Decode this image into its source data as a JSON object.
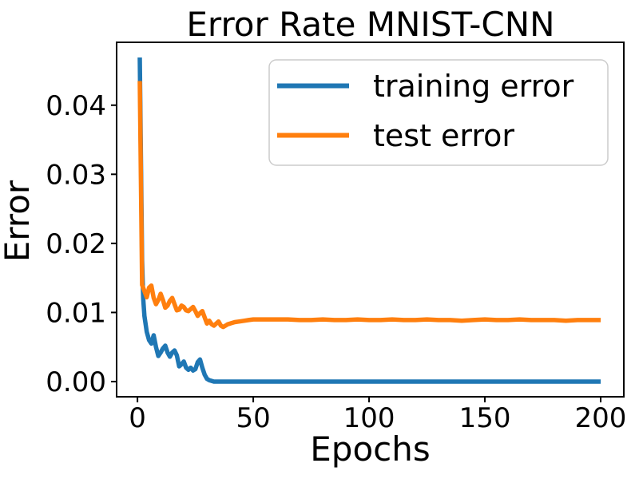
{
  "chart_data": {
    "type": "line",
    "title": "Error Rate MNIST-CNN",
    "xlabel": "Epochs",
    "ylabel": "Error",
    "xlim": [
      -9,
      210
    ],
    "ylim": [
      -0.0022,
      0.0491
    ],
    "xticks": [
      0,
      50,
      100,
      150,
      200
    ],
    "xtick_labels": [
      "0",
      "50",
      "100",
      "150",
      "200"
    ],
    "yticks": [
      0,
      0.01,
      0.02,
      0.03,
      0.04
    ],
    "ytick_labels": [
      "0.00",
      "0.01",
      "0.02",
      "0.03",
      "0.04"
    ],
    "grid": false,
    "legend_position": "upper right",
    "series": [
      {
        "name": "training error",
        "color": "#1f77b4",
        "points": [
          [
            1,
            0.0469
          ],
          [
            2,
            0.0175
          ],
          [
            2.5,
            0.012
          ],
          [
            3,
            0.0095
          ],
          [
            4,
            0.0072
          ],
          [
            5,
            0.006
          ],
          [
            6,
            0.0055
          ],
          [
            7,
            0.0067
          ],
          [
            8,
            0.005
          ],
          [
            9,
            0.0037
          ],
          [
            10,
            0.0042
          ],
          [
            11,
            0.0048
          ],
          [
            12,
            0.0052
          ],
          [
            13,
            0.0042
          ],
          [
            14,
            0.0036
          ],
          [
            15,
            0.0042
          ],
          [
            16,
            0.0045
          ],
          [
            17,
            0.0038
          ],
          [
            18,
            0.0022
          ],
          [
            19,
            0.0025
          ],
          [
            20,
            0.0029
          ],
          [
            21,
            0.002
          ],
          [
            22,
            0.0017
          ],
          [
            23,
            0.002
          ],
          [
            24,
            0.0016
          ],
          [
            25,
            0.0018
          ],
          [
            26,
            0.0028
          ],
          [
            27,
            0.0032
          ],
          [
            28,
            0.002
          ],
          [
            29,
            0.001
          ],
          [
            30,
            0.0004
          ],
          [
            31,
            0.0002
          ],
          [
            32,
            0.0001
          ],
          [
            33,
            0
          ],
          [
            36,
            0
          ],
          [
            40,
            0
          ],
          [
            60,
            0
          ],
          [
            80,
            0
          ],
          [
            100,
            0
          ],
          [
            120,
            0
          ],
          [
            140,
            0
          ],
          [
            160,
            0
          ],
          [
            180,
            0
          ],
          [
            200,
            0
          ]
        ]
      },
      {
        "name": "test error",
        "color": "#ff7f0e",
        "points": [
          [
            1,
            0.0435
          ],
          [
            2,
            0.014
          ],
          [
            3,
            0.0131
          ],
          [
            4,
            0.0122
          ],
          [
            5,
            0.0136
          ],
          [
            6,
            0.0139
          ],
          [
            7,
            0.0121
          ],
          [
            8,
            0.0112
          ],
          [
            9,
            0.0118
          ],
          [
            10,
            0.0127
          ],
          [
            11,
            0.0118
          ],
          [
            12,
            0.0107
          ],
          [
            13,
            0.011
          ],
          [
            14,
            0.0117
          ],
          [
            15,
            0.0121
          ],
          [
            16,
            0.0112
          ],
          [
            17,
            0.0103
          ],
          [
            18,
            0.0104
          ],
          [
            19,
            0.011
          ],
          [
            20,
            0.0108
          ],
          [
            21,
            0.0103
          ],
          [
            22,
            0.0102
          ],
          [
            23,
            0.0105
          ],
          [
            24,
            0.0108
          ],
          [
            25,
            0.0102
          ],
          [
            26,
            0.0095
          ],
          [
            27,
            0.0099
          ],
          [
            28,
            0.0102
          ],
          [
            29,
            0.0093
          ],
          [
            30,
            0.0084
          ],
          [
            31,
            0.0088
          ],
          [
            32,
            0.0083
          ],
          [
            33,
            0.0081
          ],
          [
            34,
            0.0084
          ],
          [
            35,
            0.0087
          ],
          [
            36,
            0.0081
          ],
          [
            37,
            0.0079
          ],
          [
            38,
            0.0081
          ],
          [
            39,
            0.0083
          ],
          [
            40,
            0.0084
          ],
          [
            42,
            0.0086
          ],
          [
            44,
            0.0087
          ],
          [
            46,
            0.0088
          ],
          [
            48,
            0.0089
          ],
          [
            50,
            0.009
          ],
          [
            55,
            0.009
          ],
          [
            60,
            0.009
          ],
          [
            65,
            0.009
          ],
          [
            70,
            0.0089
          ],
          [
            75,
            0.0089
          ],
          [
            80,
            0.009
          ],
          [
            85,
            0.0089
          ],
          [
            90,
            0.0089
          ],
          [
            95,
            0.009
          ],
          [
            100,
            0.0089
          ],
          [
            105,
            0.0089
          ],
          [
            110,
            0.009
          ],
          [
            115,
            0.0089
          ],
          [
            120,
            0.0089
          ],
          [
            125,
            0.009
          ],
          [
            130,
            0.0089
          ],
          [
            135,
            0.0089
          ],
          [
            140,
            0.0088
          ],
          [
            145,
            0.0089
          ],
          [
            150,
            0.009
          ],
          [
            155,
            0.0089
          ],
          [
            160,
            0.0089
          ],
          [
            165,
            0.009
          ],
          [
            170,
            0.0089
          ],
          [
            175,
            0.0089
          ],
          [
            180,
            0.0089
          ],
          [
            185,
            0.0088
          ],
          [
            190,
            0.0089
          ],
          [
            195,
            0.0089
          ],
          [
            200,
            0.0089
          ]
        ]
      }
    ]
  }
}
